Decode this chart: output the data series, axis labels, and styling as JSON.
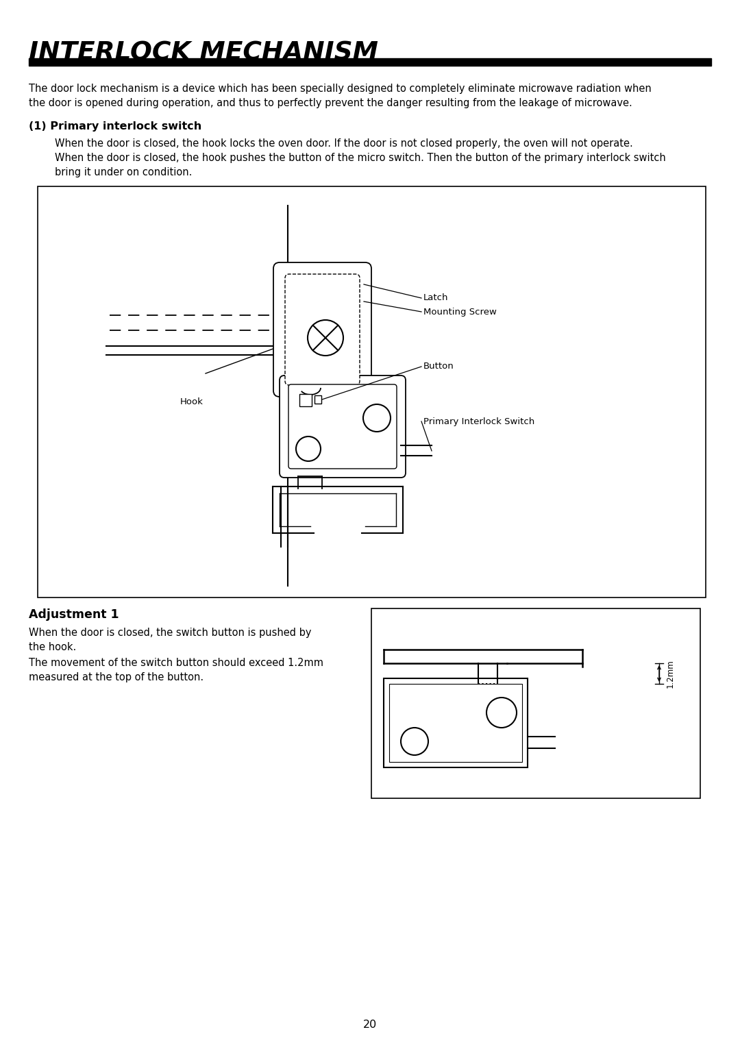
{
  "title": "INTERLOCK MECHANISM",
  "bg_color": "#ffffff",
  "black": "#000000",
  "intro_line1": "The door lock mechanism is a device which has been specially designed to completely eliminate microwave radiation when",
  "intro_line2": "the door is opened during operation, and thus to perfectly prevent the danger resulting from the leakage of microwave.",
  "sec1_title": "(1) Primary interlock switch",
  "sec1_line1": "When the door is closed, the hook locks the oven door. If the door is not closed properly, the oven will not operate.",
  "sec1_line2": "When the door is closed, the hook pushes the button of the micro switch. Then the button of the primary interlock switch",
  "sec1_line3": "bring it under on condition.",
  "lbl_latch": "Latch",
  "lbl_screw": "Mounting Screw",
  "lbl_button": "Button",
  "lbl_hook": "Hook",
  "lbl_primary": "Primary Interlock Switch",
  "adj_title": "Adjustment 1",
  "adj_line1": "When the door is closed, the switch button is pushed by",
  "adj_line2": "the hook.",
  "adj_line3": "The movement of the switch button should exceed 1.2mm",
  "adj_line4": "measured at the top of the button.",
  "dim_label": "1.2mm",
  "page_num": "20"
}
